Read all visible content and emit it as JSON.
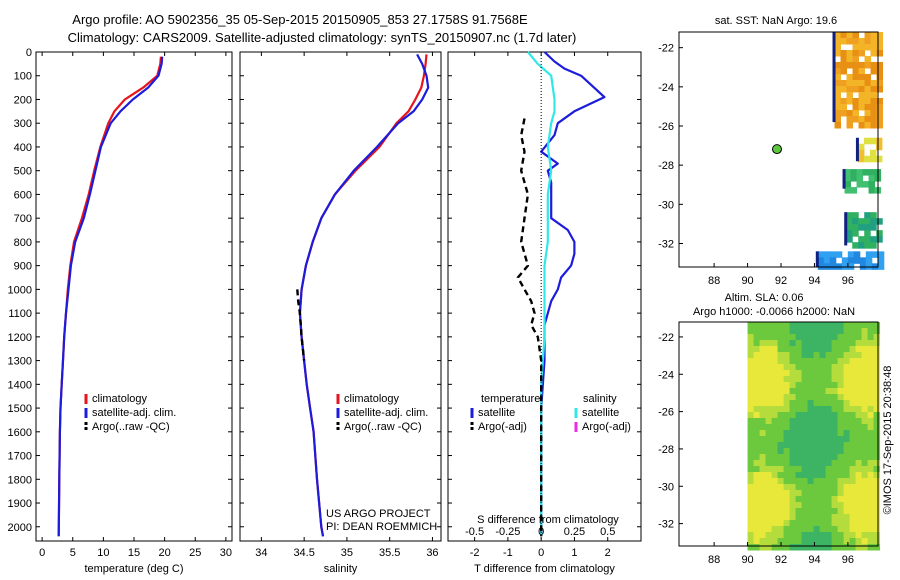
{
  "header": {
    "title_line1": "Argo profile: AO 5902356_35 05-Sep-2015 20150905_853 27.1758S 91.7568E",
    "title_line2": "Climatology: CARS2009. Satellite-adjusted climatology: synTS_20150907.nc (1.7d later)"
  },
  "colors": {
    "climatology": "#e8141c",
    "satellite": "#1c1cdc",
    "argo": "#000000",
    "satellite_salinity": "#30e8e8",
    "argo_salinity": "#e830e8"
  },
  "depth_axis": {
    "ticks": [
      0,
      100,
      200,
      300,
      400,
      500,
      600,
      700,
      800,
      900,
      1000,
      1100,
      1200,
      1300,
      1400,
      1500,
      1600,
      1700,
      1800,
      1900,
      2000
    ],
    "range": [
      0,
      2060
    ]
  },
  "chart_data": [
    {
      "type": "line",
      "id": "temperature",
      "xlabel": "temperature (deg C)",
      "xlim": [
        -1,
        31
      ],
      "xticks": [
        0,
        5,
        10,
        15,
        20,
        25,
        30
      ],
      "ylim": [
        0,
        2060
      ],
      "legend": [
        "climatology",
        "satellite-adj. clim.",
        "Argo(..raw -QC)"
      ],
      "series": [
        {
          "name": "climatology",
          "color": "#e8141c",
          "x": [
            19.4,
            19.3,
            18.8,
            16.5,
            13.5,
            11.8,
            10.8,
            9.5,
            8.5,
            7.6,
            6.5,
            5.2,
            4.6,
            4.2,
            3.9,
            3.6,
            3.4,
            3.2,
            3.0,
            2.9,
            2.8,
            2.7
          ],
          "y": [
            20,
            50,
            100,
            150,
            200,
            250,
            300,
            400,
            500,
            600,
            700,
            800,
            900,
            1000,
            1100,
            1200,
            1300,
            1400,
            1500,
            1600,
            1800,
            2040
          ]
        },
        {
          "name": "satellite-adj. clim.",
          "color": "#1c1cdc",
          "x": [
            19.6,
            19.5,
            19.0,
            17.3,
            14.8,
            12.8,
            11.2,
            9.6,
            8.7,
            7.8,
            6.8,
            5.4,
            4.7,
            4.3,
            3.9,
            3.6,
            3.4,
            3.2,
            3.0,
            2.9,
            2.8,
            2.7
          ],
          "y": [
            20,
            50,
            100,
            150,
            200,
            250,
            300,
            400,
            500,
            600,
            700,
            800,
            900,
            1000,
            1100,
            1200,
            1300,
            1400,
            1500,
            1600,
            1800,
            2040
          ]
        }
      ]
    },
    {
      "type": "line",
      "id": "salinity",
      "xlabel": "salinity",
      "xlim": [
        33.75,
        36.1
      ],
      "xticks": [
        34,
        34.5,
        35,
        35.5,
        36
      ],
      "xtick_labels": [
        "34",
        "34.5",
        "35",
        "35.5",
        "36"
      ],
      "ylim": [
        0,
        2060
      ],
      "legend": [
        "climatology",
        "satellite-adj. clim.",
        "Argo(..raw -QC)"
      ],
      "series": [
        {
          "name": "climatology",
          "color": "#e8141c",
          "x": [
            35.93,
            35.92,
            35.9,
            35.87,
            35.8,
            35.72,
            35.58,
            35.38,
            35.1,
            34.86,
            34.7,
            34.6,
            34.52,
            34.47,
            34.45,
            34.47,
            34.5,
            34.53,
            34.57,
            34.61,
            34.65,
            34.7,
            34.72
          ],
          "y": [
            10,
            50,
            100,
            150,
            200,
            250,
            300,
            400,
            500,
            600,
            700,
            800,
            900,
            1000,
            1100,
            1200,
            1300,
            1400,
            1500,
            1600,
            1800,
            2000,
            2040
          ]
        },
        {
          "name": "satellite-adj. clim.",
          "color": "#1c1cdc",
          "x": [
            35.82,
            35.88,
            35.93,
            35.95,
            35.88,
            35.78,
            35.6,
            35.35,
            35.08,
            34.86,
            34.7,
            34.6,
            34.52,
            34.47,
            34.45,
            34.47,
            34.5,
            34.53,
            34.57,
            34.61,
            34.65,
            34.7,
            34.72
          ],
          "y": [
            10,
            50,
            100,
            150,
            200,
            250,
            300,
            400,
            500,
            600,
            700,
            800,
            900,
            1000,
            1100,
            1200,
            1300,
            1400,
            1500,
            1600,
            1800,
            2000,
            2040
          ]
        },
        {
          "name": "Argo(..raw -QC)",
          "color": "#000000",
          "dashed": true,
          "x": [
            34.42,
            34.43,
            34.45,
            34.47,
            34.5
          ],
          "y": [
            1000,
            1050,
            1100,
            1200,
            1300
          ]
        }
      ],
      "annotations": [
        "US ARGO PROJECT",
        "PI: DEAN ROEMMICH"
      ]
    },
    {
      "type": "line",
      "id": "difference",
      "xlabel": "T difference from climatology",
      "top_xlabel": "S difference from climatology",
      "xlim": [
        -2.8,
        3.0
      ],
      "xticks": [
        -2,
        -1,
        0,
        1,
        2
      ],
      "top_ticks": [
        "-0.5",
        "-0.25",
        "0",
        "0.25",
        "0.5"
      ],
      "ylim": [
        0,
        2060
      ],
      "legend_temperature": [
        "temperature",
        "satellite",
        "Argo(-adj)"
      ],
      "legend_salinity": [
        "salinity",
        "satellite",
        "Argo(-adj)"
      ],
      "series": [
        {
          "name": "satellite",
          "group": "temperature",
          "color": "#1c1cdc",
          "x": [
            0.1,
            0.4,
            0.7,
            1.2,
            1.9,
            1.0,
            0.5,
            0.4,
            0.0,
            0.5,
            0.2,
            0.3,
            0.3,
            0.3,
            0.8,
            1.0,
            1.0,
            0.9,
            0.6,
            0.5,
            0.3,
            0.1,
            0.1,
            0.0,
            0.0,
            0.0
          ],
          "y": [
            0,
            40,
            70,
            100,
            190,
            250,
            300,
            350,
            420,
            470,
            500,
            550,
            650,
            700,
            750,
            800,
            850,
            900,
            950,
            1000,
            1050,
            1150,
            1300,
            1500,
            1800,
            2040
          ]
        },
        {
          "name": "satellite",
          "group": "salinity",
          "color": "#30e8e8",
          "x": [
            -0.4,
            -0.1,
            0.3,
            0.4,
            0.4,
            0.3,
            0.2,
            0.3,
            0.2,
            0.2,
            0.1,
            0.1,
            0.1,
            0.0,
            0.0,
            0.0,
            0.0
          ],
          "y": [
            0,
            50,
            100,
            200,
            250,
            300,
            400,
            500,
            600,
            800,
            900,
            1000,
            1200,
            1400,
            1600,
            1800,
            2040
          ]
        },
        {
          "name": "Argo(-adj)",
          "group": "temperature",
          "color": "#000000",
          "dashed": true,
          "x": [
            -0.5,
            -0.6,
            -0.5,
            -0.6,
            -0.4,
            -0.5,
            -0.6,
            -0.4,
            -0.7,
            -0.5,
            -0.3,
            -0.2,
            -0.3,
            -0.1,
            0.0,
            0.0,
            0.0
          ],
          "y": [
            280,
            350,
            420,
            500,
            600,
            700,
            800,
            900,
            950,
            1000,
            1050,
            1100,
            1150,
            1200,
            1300,
            1500,
            2040
          ]
        }
      ]
    },
    {
      "type": "heatmap",
      "id": "sst_map",
      "title": "sat. SST: NaN  Argo: 19.6",
      "xticks": [
        88,
        90,
        92,
        94,
        96
      ],
      "yticks": [
        -22,
        -24,
        -26,
        -28,
        -30,
        -32
      ],
      "xlim": [
        85.9,
        97.8
      ],
      "ylim": [
        -33.2,
        -21.2
      ],
      "point": {
        "lon": 91.76,
        "lat": -27.18
      }
    },
    {
      "type": "heatmap",
      "id": "sla_map",
      "title_line1": "Altim. SLA: 0.06",
      "title_line2": "Argo h1000: -0.0066  h2000: NaN",
      "xticks": [
        88,
        90,
        92,
        94,
        96
      ],
      "yticks": [
        -22,
        -24,
        -26,
        -28,
        -30,
        -32
      ],
      "xlim": [
        85.9,
        97.8
      ],
      "ylim": [
        -33.2,
        -21.2
      ]
    }
  ],
  "footer": {
    "stamp": "©IMOS 17-Sep-2015 20:38:48"
  }
}
